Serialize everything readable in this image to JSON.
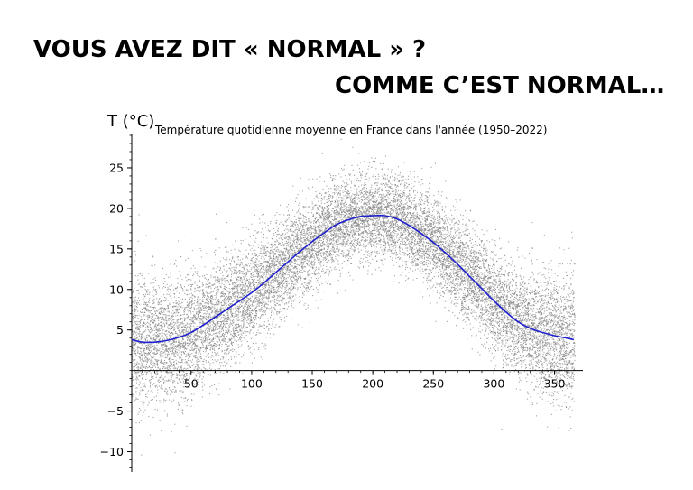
{
  "slide": {
    "headline_1": "VOUS AVEZ DIT « NORMAL » ?",
    "headline_2": "COMME C’EST NORMAL…"
  },
  "chart_data": {
    "type": "scatter",
    "title": "Température quotidienne moyenne en France dans l'année (1950–2022)",
    "ylabel": "T (°C)",
    "xlabel": "",
    "xlim": [
      1,
      366
    ],
    "ylim": [
      -12.5,
      29
    ],
    "xticks": [
      50,
      100,
      150,
      200,
      250,
      300,
      350
    ],
    "yticks": [
      -10,
      -5,
      5,
      10,
      15,
      20,
      25
    ],
    "ytick_labels": [
      "−10",
      "−5",
      "5",
      "10",
      "15",
      "20",
      "25"
    ],
    "grid": false,
    "series": [
      {
        "kind": "scatter",
        "color": "#808080",
        "description_years": [
          1950,
          2022
        ],
        "spread_sd_by_day": [
          [
            1,
            4.2
          ],
          [
            60,
            3.4
          ],
          [
            120,
            3.0
          ],
          [
            200,
            2.6
          ],
          [
            260,
            2.8
          ],
          [
            320,
            3.2
          ],
          [
            366,
            4.2
          ]
        ]
      },
      {
        "kind": "line",
        "color": "#1f1fd0",
        "x": [
          1,
          10,
          20,
          30,
          40,
          50,
          60,
          70,
          80,
          90,
          100,
          110,
          120,
          130,
          140,
          150,
          160,
          170,
          180,
          190,
          200,
          210,
          220,
          230,
          240,
          250,
          260,
          270,
          280,
          290,
          300,
          310,
          320,
          330,
          340,
          350,
          360,
          366
        ],
        "y": [
          3.8,
          3.5,
          3.5,
          3.7,
          4.1,
          4.7,
          5.6,
          6.6,
          7.6,
          8.6,
          9.6,
          10.8,
          12.1,
          13.4,
          14.7,
          15.9,
          17.0,
          18.0,
          18.6,
          19.0,
          19.1,
          19.1,
          18.7,
          17.9,
          16.9,
          15.8,
          14.5,
          13.1,
          11.6,
          10.1,
          8.6,
          7.2,
          6.0,
          5.2,
          4.7,
          4.3,
          4.0,
          3.8
        ]
      }
    ]
  },
  "colors": {
    "background": "#ffffff",
    "scatter": "#808080",
    "trend": "#1f1fd0",
    "axis": "#000000"
  }
}
